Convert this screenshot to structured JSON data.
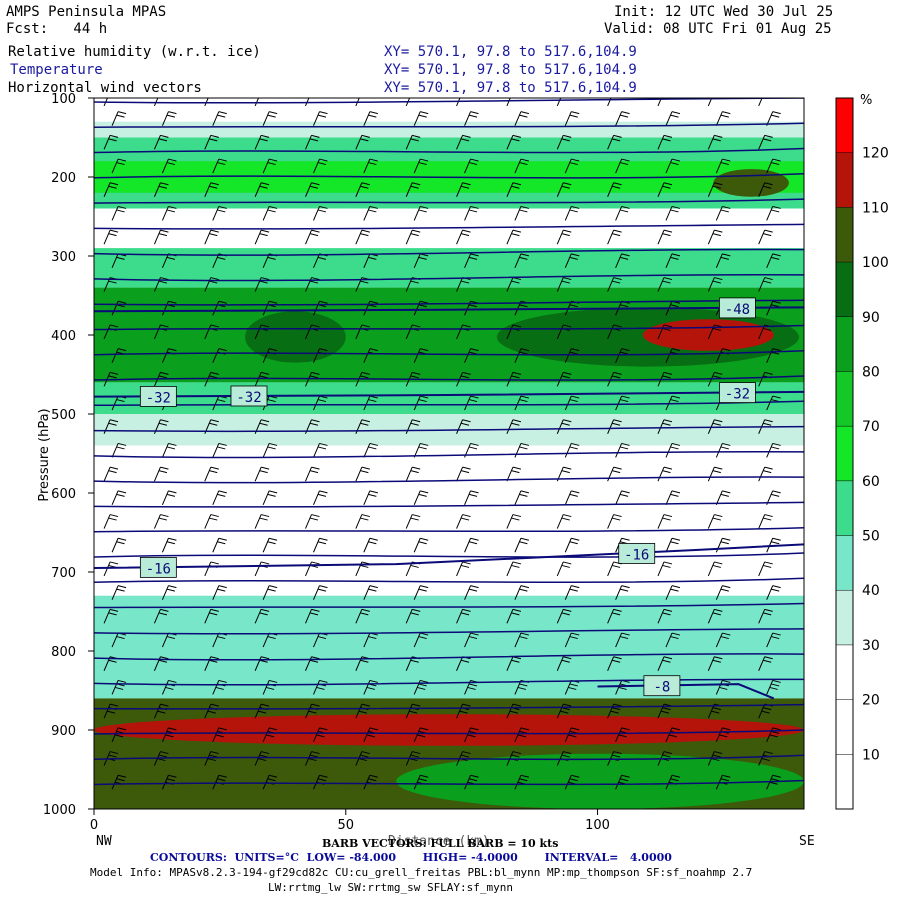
{
  "header": {
    "model": "AMPS Peninsula MPAS",
    "fcst": "Fcst:   44 h",
    "init": "Init: 12 UTC Wed 30 Jul 25",
    "valid": "Valid: 08 UTC Fri 01 Aug 25",
    "fields": [
      {
        "name": "Relative humidity (w.r.t. ice)",
        "xy": "XY= 570.1, 97.8 to 517.6,104.9"
      },
      {
        "name": "Temperature",
        "xy": "XY= 570.1, 97.8 to 517.6,104.9"
      },
      {
        "name": "Horizontal wind vectors",
        "xy": "XY= 570.1, 97.8 to 517.6,104.9"
      }
    ]
  },
  "footer": {
    "left_end": "NW",
    "right_end": "SE",
    "xlabel_overlap": "Distance (km)",
    "barb": "BARB VECTORS: FULL BARB = 10 kts",
    "contours": "CONTOURS:  UNITS=°C  LOW= -84.000       HIGH= -4.0000       INTERVAL=   4.0000",
    "model_info_1": "Model Info: MPASv8.2.3-194-gf29cd82c CU:cu_grell_freitas PBL:bl_mynn MP:mp_thompson SF:sf_noahmp 2.7",
    "model_info_2": "LW:rrtmg_lw SW:rrtmg_sw SFLAY:sf_mynn"
  },
  "colors": {
    "temperature_contour": "#0a0a78",
    "barb": "#000000",
    "rh_scale": [
      "#ffffff",
      "#ffffff",
      "#ffffff",
      "#c8f0e2",
      "#78e6c8",
      "#3cdc8c",
      "#14e628",
      "#14c828",
      "#0aa01e",
      "#086e14",
      "#3c5a0a",
      "#b4140a",
      "#ff0000"
    ]
  },
  "chart_data": {
    "type": "heatmap",
    "title": "Relative humidity (w.r.t. ice)",
    "xlabel": "Distance (km)",
    "ylabel": "Pressure (hPa)",
    "xlim": [
      0,
      141
    ],
    "ylim": [
      1000,
      100
    ],
    "xticks": [
      0,
      50,
      100
    ],
    "yticks": [
      100,
      200,
      300,
      400,
      500,
      600,
      700,
      800,
      900,
      1000
    ],
    "colorbar": {
      "unit": "%",
      "levels": [
        10,
        20,
        30,
        40,
        50,
        60,
        70,
        80,
        90,
        100,
        110,
        120
      ]
    },
    "rh_bands": [
      {
        "p_top": 130,
        "p_bot": 150,
        "rh": 35
      },
      {
        "p_top": 150,
        "p_bot": 240,
        "rh": 55
      },
      {
        "p_top": 180,
        "p_bot": 220,
        "rh": 68
      },
      {
        "p_top": 240,
        "p_bot": 290,
        "rh": 15
      },
      {
        "p_top": 290,
        "p_bot": 340,
        "rh": 55
      },
      {
        "p_top": 340,
        "p_bot": 460,
        "rh": 82
      },
      {
        "p_top": 460,
        "p_bot": 500,
        "rh": 58
      },
      {
        "p_top": 500,
        "p_bot": 540,
        "rh": 38
      },
      {
        "p_top": 540,
        "p_bot": 730,
        "rh": 12
      },
      {
        "p_top": 730,
        "p_bot": 860,
        "rh": 42
      },
      {
        "p_top": 860,
        "p_bot": 1000,
        "rh": 100
      }
    ],
    "rh_patches": [
      {
        "x0": 30,
        "x1": 50,
        "p_top": 370,
        "p_bot": 435,
        "rh": 95
      },
      {
        "x0": 80,
        "x1": 140,
        "p_top": 365,
        "p_bot": 440,
        "rh": 96
      },
      {
        "x0": 109,
        "x1": 135,
        "p_top": 380,
        "p_bot": 420,
        "rh": 115
      },
      {
        "x0": 123,
        "x1": 138,
        "p_top": 190,
        "p_bot": 225,
        "rh": 102
      },
      {
        "x0": 0,
        "x1": 141,
        "p_top": 880,
        "p_bot": 920,
        "rh": 118
      },
      {
        "x0": 60,
        "x1": 141,
        "p_top": 930,
        "p_bot": 1000,
        "rh": 80
      }
    ],
    "temperature_contours": [
      {
        "label": "-48",
        "points": [
          [
            0,
            370
          ],
          [
            70,
            368
          ],
          [
            141,
            365
          ]
        ],
        "label_x": 125
      },
      {
        "label": "-32",
        "points": [
          [
            0,
            478
          ],
          [
            70,
            476
          ],
          [
            141,
            472
          ]
        ],
        "label_x": [
          10,
          28,
          125
        ]
      },
      {
        "label": "-16",
        "points": [
          [
            0,
            695
          ],
          [
            60,
            690
          ],
          [
            120,
            672
          ],
          [
            141,
            665
          ]
        ],
        "label_x": [
          10,
          105
        ]
      },
      {
        "label": "-8",
        "points": [
          [
            100,
            845
          ],
          [
            128,
            842
          ],
          [
            135,
            860
          ]
        ],
        "label_x": 110
      }
    ],
    "wind_barb_rows_hpa": [
      110,
      135,
      165,
      195,
      225,
      255,
      285,
      315,
      345,
      375,
      405,
      435,
      465,
      495,
      525,
      555,
      585,
      615,
      645,
      675,
      705,
      735,
      765,
      795,
      825,
      855,
      885,
      915,
      945,
      975
    ],
    "wind_barb_columns_km": [
      2,
      12,
      22,
      32,
      42,
      52,
      62,
      72,
      82,
      92,
      102,
      112,
      122,
      132
    ],
    "full_barb_kts": 10
  }
}
